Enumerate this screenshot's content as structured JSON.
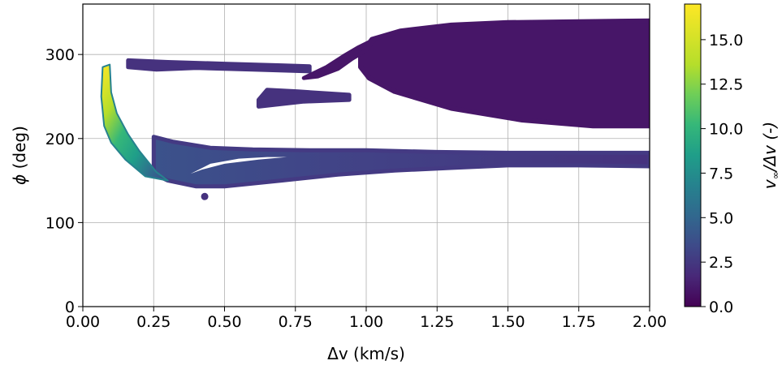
{
  "chart_data": {
    "type": "scatter",
    "xlabel": "Δv (km/s)",
    "ylabel_symbol": "ϕ",
    "ylabel_unit": "(deg)",
    "xlim": [
      0.0,
      2.0
    ],
    "ylim": [
      0,
      360
    ],
    "x_ticks": [
      "0.00",
      "0.25",
      "0.50",
      "0.75",
      "1.00",
      "1.25",
      "1.50",
      "1.75",
      "2.00"
    ],
    "y_ticks": [
      "0",
      "100",
      "200",
      "300"
    ],
    "grid": true,
    "colormap": "viridis",
    "colorbar": {
      "label_prefix": "v",
      "label_subscript": "∞",
      "label_suffix": "/Δv (-)",
      "range": [
        0.0,
        17.0
      ],
      "ticks": [
        "0.0",
        "2.5",
        "5.0",
        "7.5",
        "10.0",
        "12.5",
        "15.0"
      ]
    },
    "regions": [
      {
        "name": "upper-right-lobe",
        "x": [
          0.98,
          2.0
        ],
        "phi": [
          215,
          340
        ],
        "color_value": 0.5
      },
      {
        "name": "lower-band",
        "x": [
          0.25,
          2.0
        ],
        "phi": [
          143,
          195
        ],
        "color_value": 1.5
      },
      {
        "name": "left-branch",
        "x": [
          0.06,
          0.3
        ],
        "phi": [
          150,
          290
        ],
        "color_value": [
          7,
          17
        ]
      },
      {
        "name": "upper-streak-1",
        "x": [
          0.17,
          0.8
        ],
        "phi": [
          280,
          292
        ],
        "color_value": 1.0
      },
      {
        "name": "upper-streak-2",
        "x": [
          0.62,
          0.94
        ],
        "phi": [
          240,
          260
        ],
        "color_value": 0.8
      },
      {
        "name": "diagonal-streak",
        "x": [
          0.78,
          1.03
        ],
        "phi": [
          275,
          318
        ],
        "color_value": 0.6
      }
    ],
    "outlier_points": [
      {
        "x": 0.43,
        "phi": 131,
        "color_value": 2.5
      }
    ]
  }
}
